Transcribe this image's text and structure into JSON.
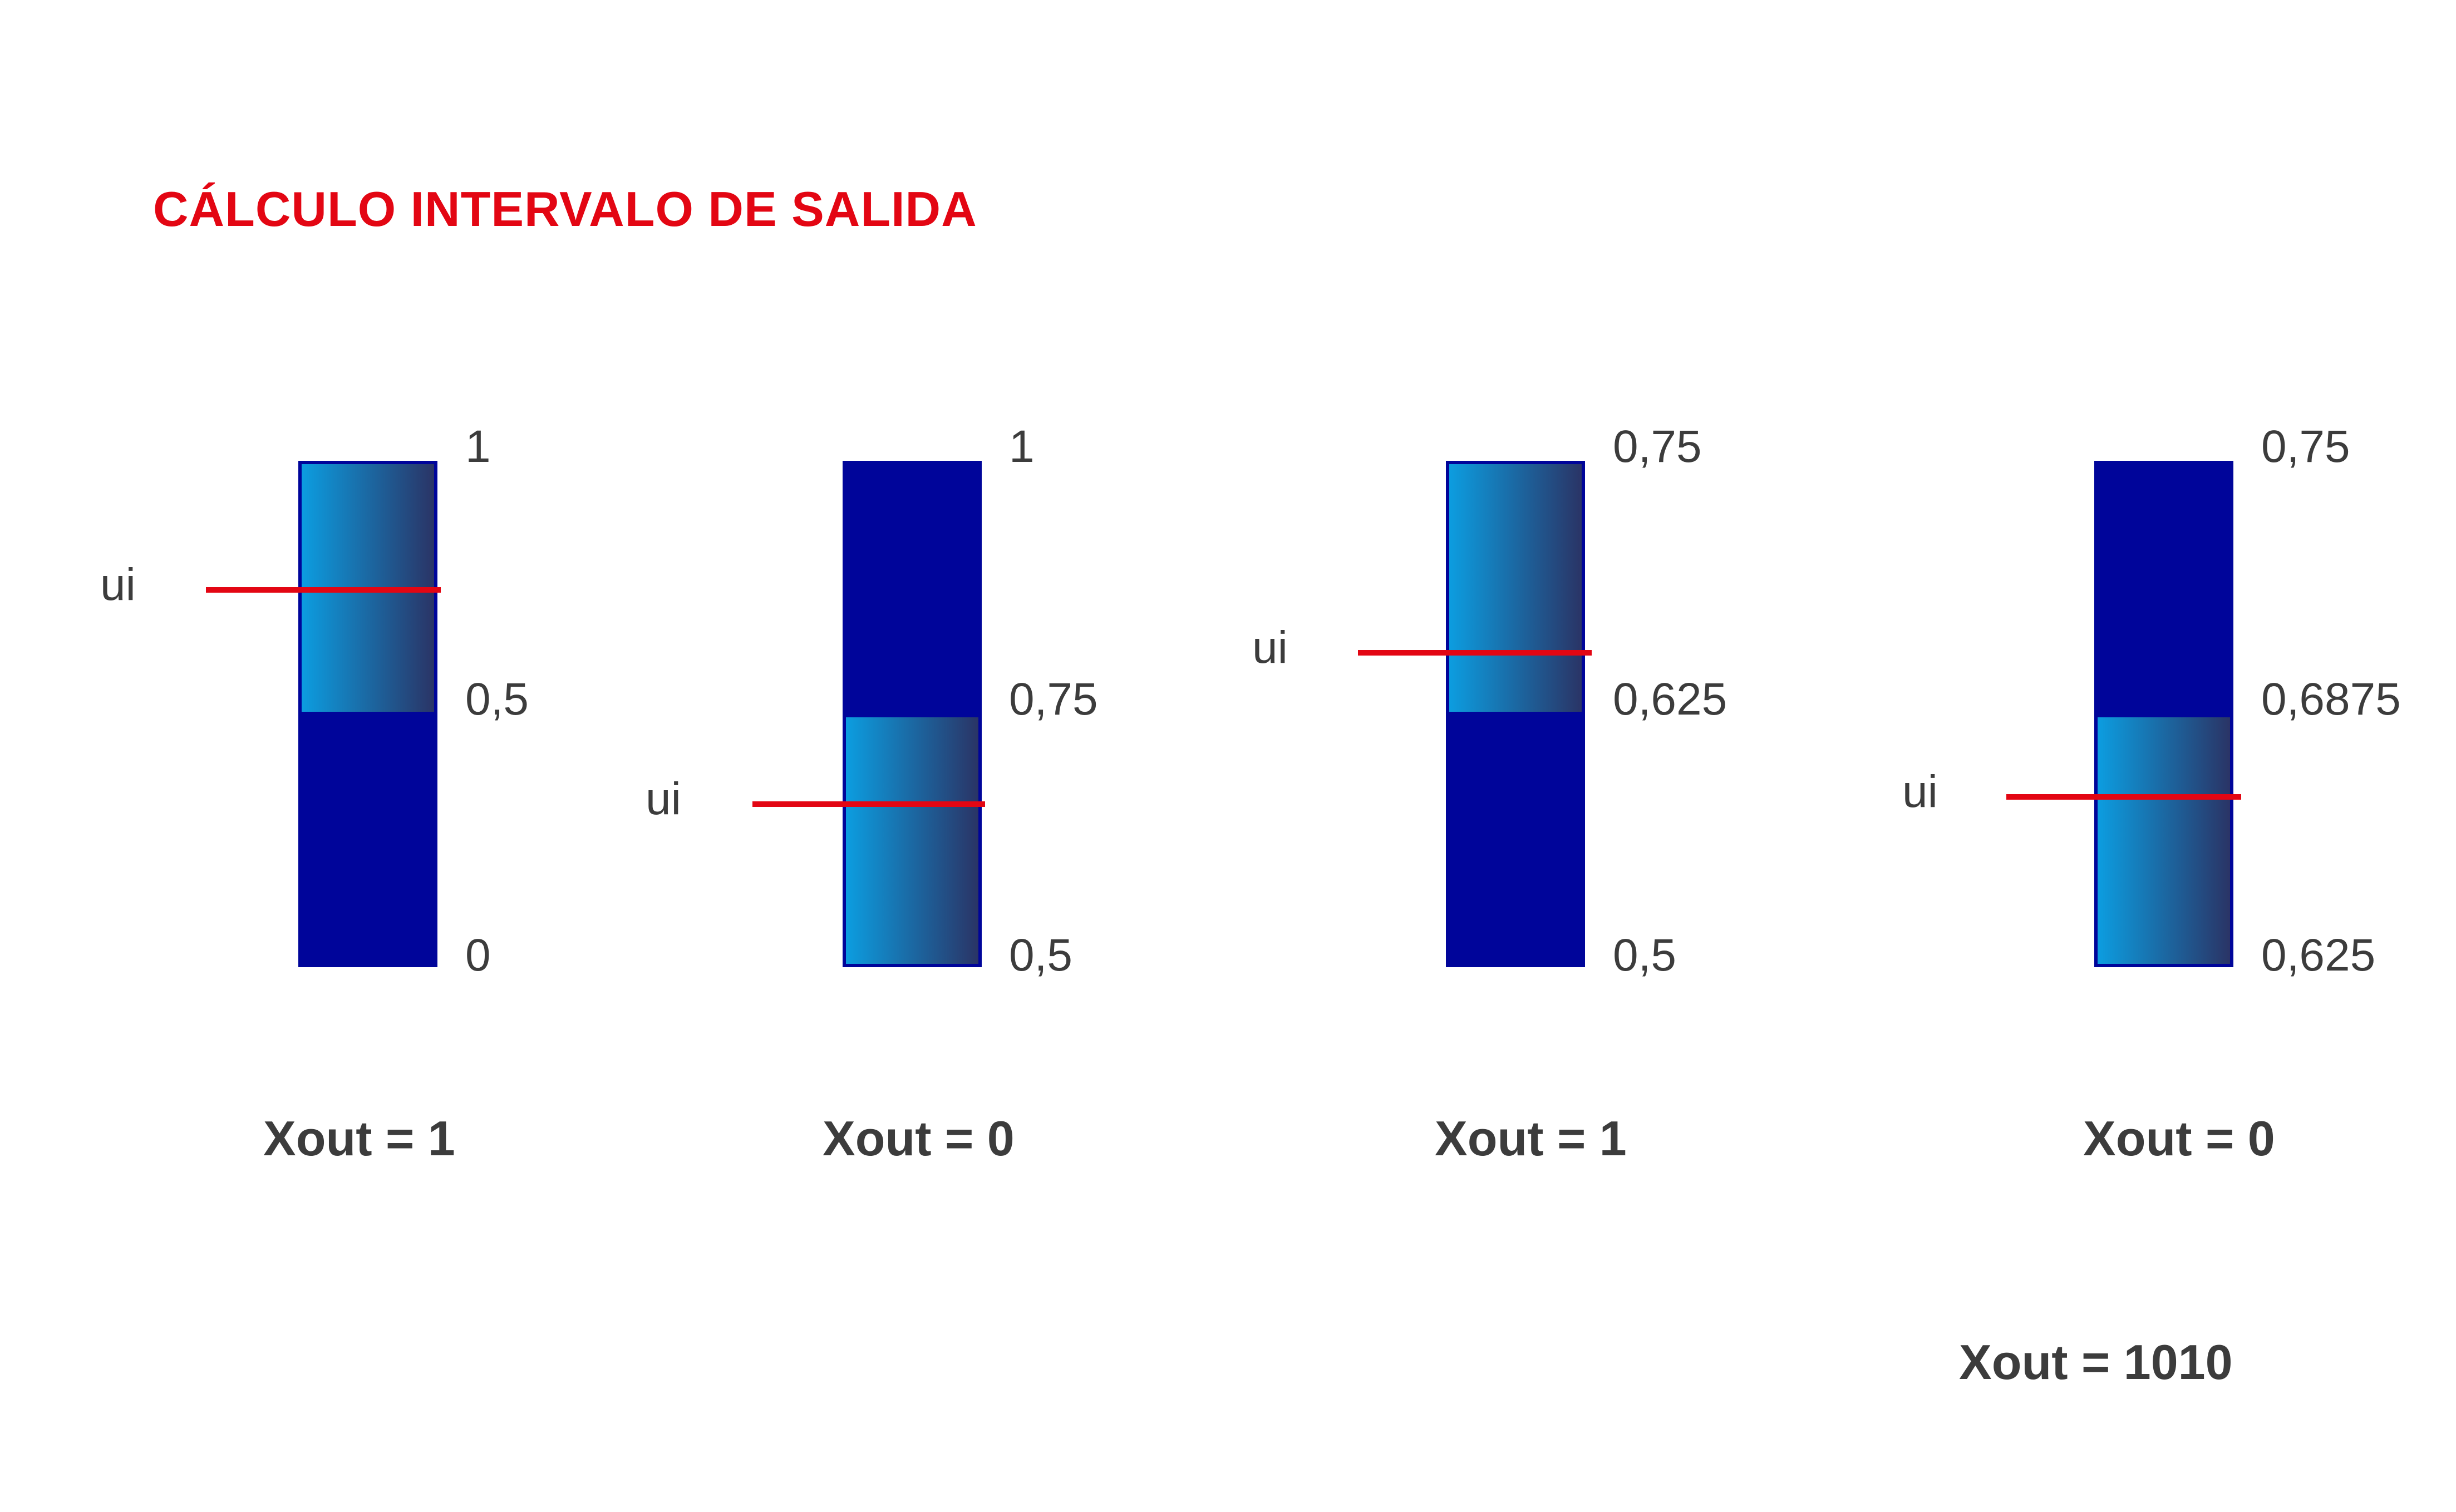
{
  "title": "CÁLCULO INTERVALO DE SALIDA",
  "colors": {
    "title": "#e30613",
    "interval_fill": "#00059a",
    "selected_gradient_start": "#0c9de0",
    "selected_gradient_end": "#2a3466",
    "marker": "#e30613",
    "text": "#3c3c3c"
  },
  "steps": [
    {
      "top_label": "1",
      "mid_label": "0,5",
      "bottom_label": "0",
      "selected_half": "upper",
      "ui_label": "ui",
      "ui_value": 0.75,
      "xout": "Xout = 1"
    },
    {
      "top_label": "1",
      "mid_label": "0,75",
      "bottom_label": "0,5",
      "selected_half": "lower",
      "ui_label": "ui",
      "ui_value": 0.67,
      "xout": "Xout = 0"
    },
    {
      "top_label": "0,75",
      "mid_label": "0,625",
      "bottom_label": "0,5",
      "selected_half": "upper",
      "ui_label": "ui",
      "ui_value": 0.67,
      "xout": "Xout = 1"
    },
    {
      "top_label": "0,75",
      "mid_label": "0,6875",
      "bottom_label": "0,625",
      "selected_half": "lower",
      "ui_label": "ui",
      "ui_value": 0.66,
      "xout": "Xout = 0"
    }
  ],
  "result": "Xout = 1010"
}
